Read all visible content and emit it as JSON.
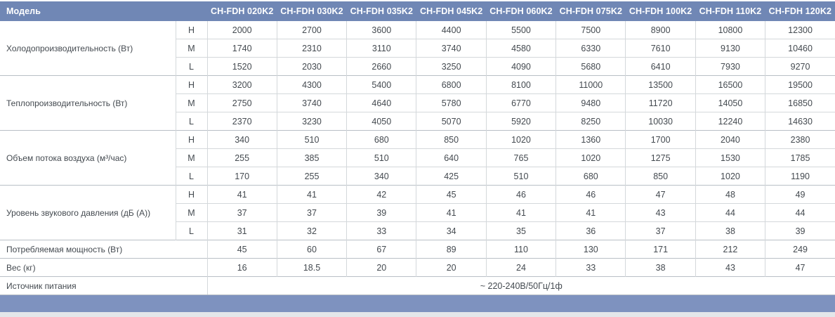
{
  "table": {
    "model_label": "Модель",
    "models": [
      "CH-FDH 020K2",
      "CH-FDH 030K2",
      "CH-FDH 035K2",
      "CH-FDH 045K2",
      "CH-FDH 060K2",
      "CH-FDH 075K2",
      "CH-FDH 100K2",
      "CH-FDH 110K2",
      "CH-FDH 120K2"
    ],
    "groups": [
      {
        "label": "Холодопроизводительность (Вт)",
        "sublevels": [
          "H",
          "M",
          "L"
        ],
        "values": [
          [
            "2000",
            "2700",
            "3600",
            "4400",
            "5500",
            "7500",
            "8900",
            "10800",
            "12300"
          ],
          [
            "1740",
            "2310",
            "3110",
            "3740",
            "4580",
            "6330",
            "7610",
            "9130",
            "10460"
          ],
          [
            "1520",
            "2030",
            "2660",
            "3250",
            "4090",
            "5680",
            "6410",
            "7930",
            "9270"
          ]
        ]
      },
      {
        "label": "Теплопроизводительность (Вт)",
        "sublevels": [
          "H",
          "M",
          "L"
        ],
        "values": [
          [
            "3200",
            "4300",
            "5400",
            "6800",
            "8100",
            "11000",
            "13500",
            "16500",
            "19500"
          ],
          [
            "2750",
            "3740",
            "4640",
            "5780",
            "6770",
            "9480",
            "11720",
            "14050",
            "16850"
          ],
          [
            "2370",
            "3230",
            "4050",
            "5070",
            "5920",
            "8250",
            "10030",
            "12240",
            "14630"
          ]
        ]
      },
      {
        "label": "Объем потока воздуха (м³/час)",
        "sublevels": [
          "H",
          "M",
          "L"
        ],
        "values": [
          [
            "340",
            "510",
            "680",
            "850",
            "1020",
            "1360",
            "1700",
            "2040",
            "2380"
          ],
          [
            "255",
            "385",
            "510",
            "640",
            "765",
            "1020",
            "1275",
            "1530",
            "1785"
          ],
          [
            "170",
            "255",
            "340",
            "425",
            "510",
            "680",
            "850",
            "1020",
            "1190"
          ]
        ]
      },
      {
        "label": "Уровень звукового давления (дБ (А))",
        "sublevels": [
          "H",
          "M",
          "L"
        ],
        "values": [
          [
            "41",
            "41",
            "42",
            "45",
            "46",
            "46",
            "47",
            "48",
            "49"
          ],
          [
            "37",
            "37",
            "39",
            "41",
            "41",
            "41",
            "43",
            "44",
            "44"
          ],
          [
            "31",
            "32",
            "33",
            "34",
            "35",
            "36",
            "37",
            "38",
            "39"
          ]
        ]
      },
      {
        "label": "Потребляемая мощность (Вт)",
        "values": [
          [
            "45",
            "60",
            "67",
            "89",
            "110",
            "130",
            "171",
            "212",
            "249"
          ]
        ]
      },
      {
        "label": "Вес (кг)",
        "values": [
          [
            "16",
            "18.5",
            "20",
            "20",
            "24",
            "33",
            "38",
            "43",
            "47"
          ]
        ]
      },
      {
        "label": "Источник питания",
        "span_value": "~ 220-240В/50Гц/1ф"
      }
    ]
  },
  "colors": {
    "header_bg": "#7087b5",
    "footer_bar": "#7e92bf",
    "body_text": "#444a50",
    "grid_line": "#d4d8db",
    "group_line": "#b9bfc6"
  }
}
